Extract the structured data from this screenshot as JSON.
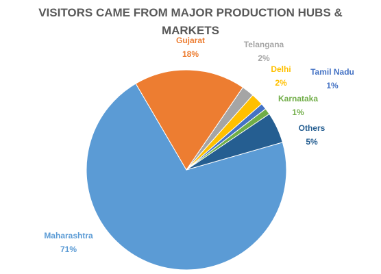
{
  "chart_data": {
    "type": "pie",
    "title": "VISITORS CAME FROM MAJOR PRODUCTION HUBS & MARKETS",
    "categories": [
      "Maharashtra",
      "Gujarat",
      "Telangana",
      "Delhi",
      "Tamil Nadu",
      "Karnataka",
      "Others"
    ],
    "values": [
      71,
      18,
      2,
      2,
      1,
      1,
      5
    ],
    "value_labels": [
      "71%",
      "18%",
      "2%",
      "2%",
      "1%",
      "1%",
      "5%"
    ],
    "colors": [
      "#5b9bd5",
      "#ed7d31",
      "#a5a5a5",
      "#ffc000",
      "#4472c4",
      "#70ad47",
      "#255e91"
    ]
  }
}
